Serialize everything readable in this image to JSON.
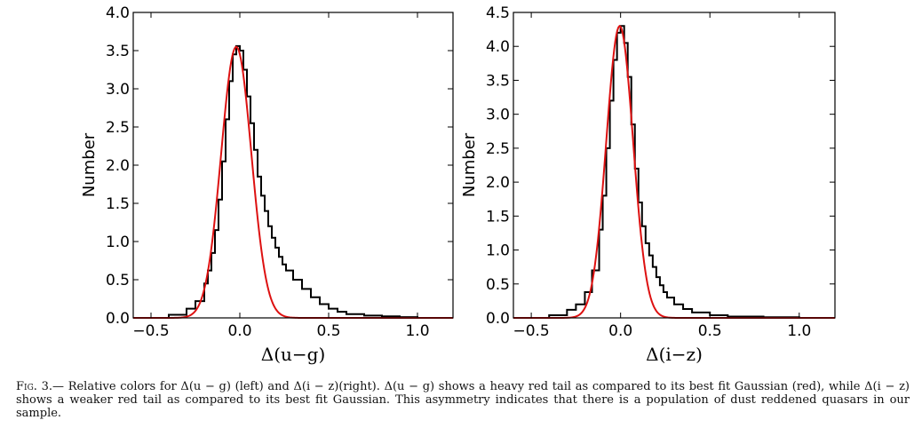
{
  "chart_data": [
    {
      "type": "histogram",
      "panel": "left",
      "xlabel": "Δ(u−g)",
      "ylabel": "Number",
      "xlim": [
        -0.6,
        1.2
      ],
      "ylim": [
        0,
        4.0
      ],
      "xticks": [
        -0.5,
        0.0,
        0.5,
        1.0
      ],
      "xtick_labels": [
        "−0.5",
        "0.0",
        "0.5",
        "1.0"
      ],
      "yticks": [
        0,
        0.5,
        1.0,
        1.5,
        2.0,
        2.5,
        3.0,
        3.5,
        4.0
      ],
      "ytick_labels": [
        "0.0",
        "0.5",
        "1.0",
        "1.5",
        "2.0",
        "2.5",
        "3.0",
        "3.5",
        "4.0"
      ],
      "grid": false,
      "series": [
        {
          "kind": "step-histogram",
          "color": "#000000",
          "points": [
            [
              -0.6,
              0
            ],
            [
              -0.5,
              0.0
            ],
            [
              -0.4,
              0.04
            ],
            [
              -0.3,
              0.12
            ],
            [
              -0.25,
              0.22
            ],
            [
              -0.2,
              0.45
            ],
            [
              -0.18,
              0.62
            ],
            [
              -0.16,
              0.85
            ],
            [
              -0.14,
              1.15
            ],
            [
              -0.12,
              1.55
            ],
            [
              -0.1,
              2.05
            ],
            [
              -0.08,
              2.6
            ],
            [
              -0.06,
              3.1
            ],
            [
              -0.04,
              3.45
            ],
            [
              -0.02,
              3.56
            ],
            [
              0.0,
              3.5
            ],
            [
              0.02,
              3.25
            ],
            [
              0.04,
              2.9
            ],
            [
              0.06,
              2.55
            ],
            [
              0.08,
              2.2
            ],
            [
              0.1,
              1.85
            ],
            [
              0.12,
              1.6
            ],
            [
              0.14,
              1.4
            ],
            [
              0.16,
              1.2
            ],
            [
              0.18,
              1.05
            ],
            [
              0.2,
              0.92
            ],
            [
              0.22,
              0.8
            ],
            [
              0.24,
              0.7
            ],
            [
              0.26,
              0.62
            ],
            [
              0.3,
              0.5
            ],
            [
              0.35,
              0.38
            ],
            [
              0.4,
              0.27
            ],
            [
              0.45,
              0.18
            ],
            [
              0.5,
              0.12
            ],
            [
              0.55,
              0.08
            ],
            [
              0.6,
              0.05
            ],
            [
              0.7,
              0.03
            ],
            [
              0.8,
              0.02
            ],
            [
              0.9,
              0.01
            ],
            [
              1.0,
              0.0
            ],
            [
              1.2,
              0
            ]
          ]
        },
        {
          "kind": "gaussian-fit",
          "color": "#dd1111",
          "amplitude": 3.55,
          "mean": -0.02,
          "sigma": 0.085
        }
      ]
    },
    {
      "type": "histogram",
      "panel": "right",
      "xlabel": "Δ(i−z)",
      "ylabel": "Number",
      "xlim": [
        -0.6,
        1.2
      ],
      "ylim": [
        0,
        4.5
      ],
      "xticks": [
        -0.5,
        0.0,
        0.5,
        1.0
      ],
      "xtick_labels": [
        "−0.5",
        "0.0",
        "0.5",
        "1.0"
      ],
      "yticks": [
        0,
        0.5,
        1.0,
        1.5,
        2.0,
        2.5,
        3.0,
        3.5,
        4.0,
        4.5
      ],
      "ytick_labels": [
        "0.0",
        "0.5",
        "1.0",
        "1.5",
        "2.0",
        "2.5",
        "3.0",
        "3.5",
        "4.0",
        "4.5"
      ],
      "grid": false,
      "series": [
        {
          "kind": "step-histogram",
          "color": "#000000",
          "points": [
            [
              -0.6,
              0
            ],
            [
              -0.5,
              0.0
            ],
            [
              -0.4,
              0.04
            ],
            [
              -0.3,
              0.12
            ],
            [
              -0.25,
              0.2
            ],
            [
              -0.2,
              0.38
            ],
            [
              -0.16,
              0.7
            ],
            [
              -0.12,
              1.3
            ],
            [
              -0.1,
              1.8
            ],
            [
              -0.08,
              2.5
            ],
            [
              -0.06,
              3.2
            ],
            [
              -0.04,
              3.8
            ],
            [
              -0.02,
              4.2
            ],
            [
              0.0,
              4.3
            ],
            [
              0.02,
              4.05
            ],
            [
              0.04,
              3.55
            ],
            [
              0.06,
              2.85
            ],
            [
              0.08,
              2.2
            ],
            [
              0.1,
              1.7
            ],
            [
              0.12,
              1.35
            ],
            [
              0.14,
              1.1
            ],
            [
              0.16,
              0.92
            ],
            [
              0.18,
              0.75
            ],
            [
              0.2,
              0.6
            ],
            [
              0.22,
              0.48
            ],
            [
              0.24,
              0.38
            ],
            [
              0.26,
              0.3
            ],
            [
              0.3,
              0.2
            ],
            [
              0.35,
              0.13
            ],
            [
              0.4,
              0.08
            ],
            [
              0.5,
              0.04
            ],
            [
              0.6,
              0.02
            ],
            [
              0.8,
              0.01
            ],
            [
              1.0,
              0.0
            ],
            [
              1.2,
              0
            ]
          ]
        },
        {
          "kind": "gaussian-fit",
          "color": "#dd1111",
          "amplitude": 4.3,
          "mean": -0.005,
          "sigma": 0.075
        }
      ]
    }
  ],
  "caption": {
    "label": "Fig. 3.—",
    "text": "Relative colors for Δ(u − g) (left) and Δ(i − z)(right). Δ(u − g) shows a heavy red tail as compared to its best fit Gaussian (red), while Δ(i − z) shows a weaker red tail as compared to its best fit Gaussian. This asymmetry indicates that there is a population of dust reddened quasars in our sample."
  }
}
